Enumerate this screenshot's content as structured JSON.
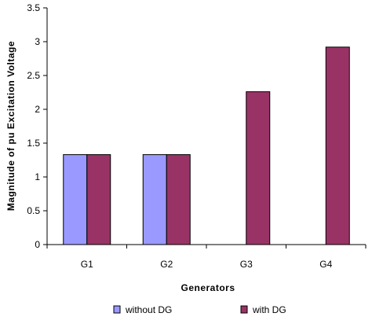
{
  "chart_data": {
    "type": "bar",
    "title": "",
    "xlabel": "Generators",
    "ylabel": "Magnitude of pu Excitation Voltage",
    "categories": [
      "G1",
      "G2",
      "G3",
      "G4"
    ],
    "ylim": [
      0,
      3.5
    ],
    "yticks": [
      "0",
      "0.5",
      "1",
      "1.5",
      "2",
      "2.5",
      "3",
      "3.5"
    ],
    "grid": false,
    "legend_position": "bottom",
    "series": [
      {
        "name": "without DG",
        "color": "#9999ff",
        "values": [
          1.33,
          1.33,
          null,
          null
        ]
      },
      {
        "name": "with DG",
        "color": "#993366",
        "values": [
          1.33,
          1.33,
          2.26,
          2.92
        ]
      }
    ]
  }
}
